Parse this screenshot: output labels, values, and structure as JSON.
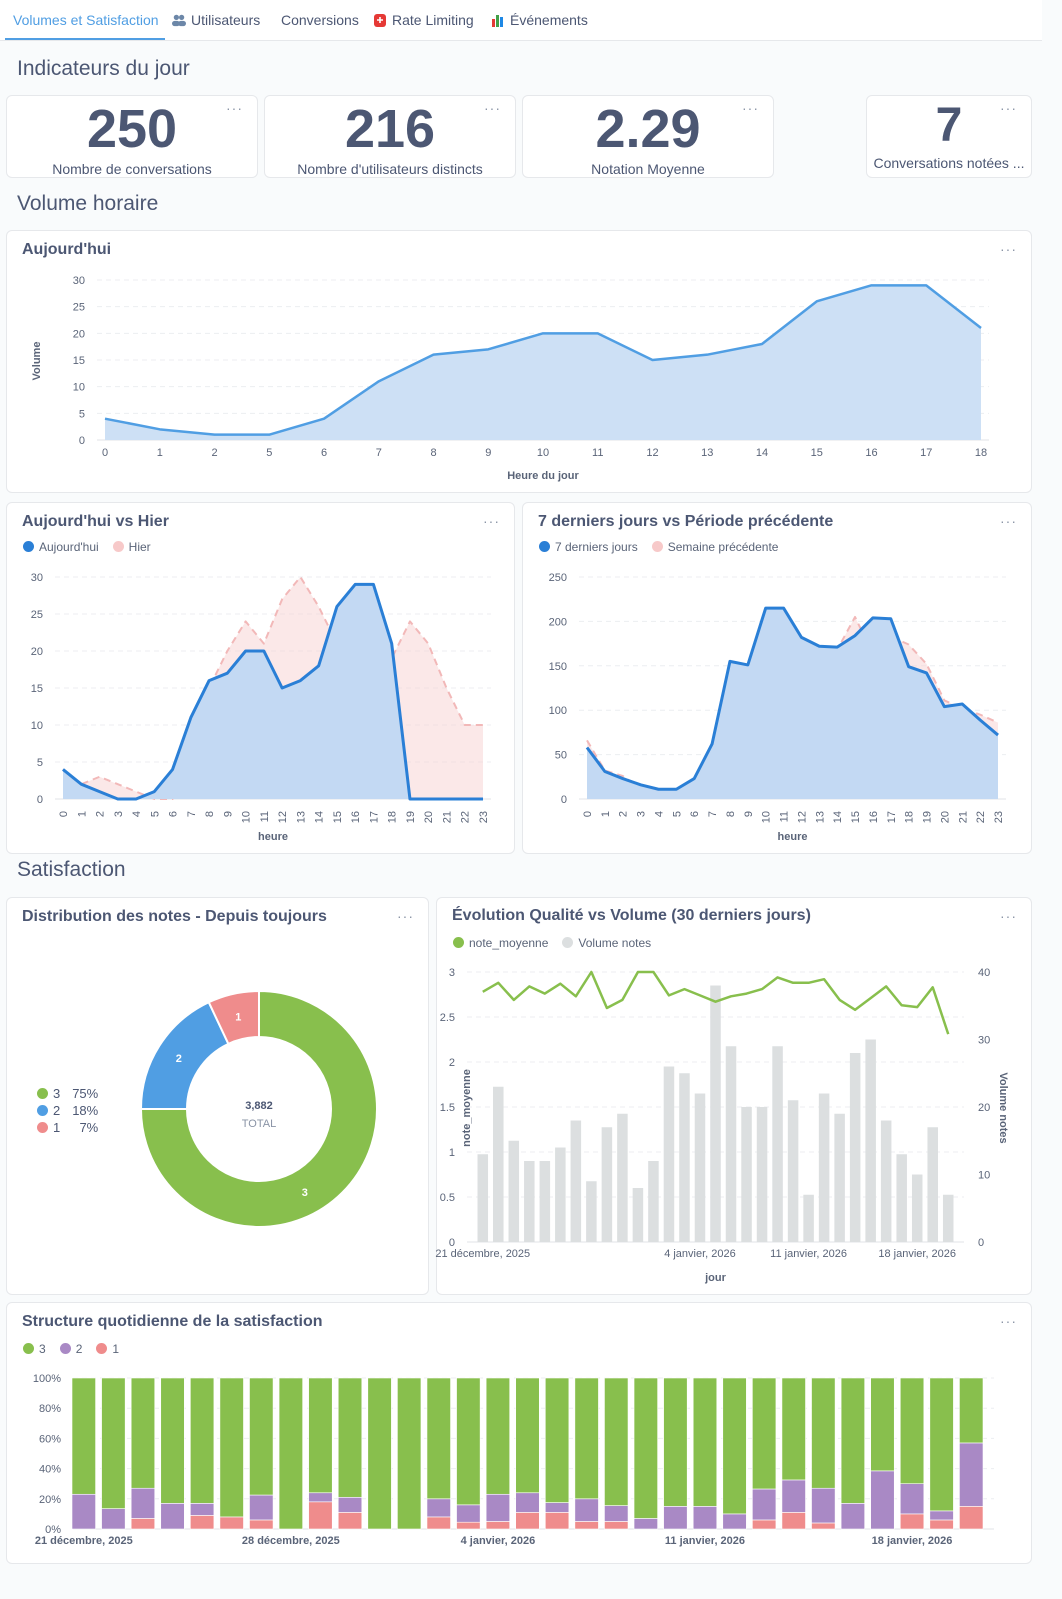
{
  "tabs": [
    {
      "label": "Volumes et Satisfaction",
      "icon": "",
      "active": true
    },
    {
      "label": "Utilisateurs",
      "icon": "users-icon"
    },
    {
      "label": "Conversions",
      "icon": ""
    },
    {
      "label": "Rate Limiting",
      "icon": "siren-icon"
    },
    {
      "label": "Événements",
      "icon": "bar-chart-icon"
    }
  ],
  "sections": {
    "kpi": "Indicateurs du jour",
    "volume": "Volume horaire",
    "satisfaction": "Satisfaction"
  },
  "menu_label": "···",
  "kpis": [
    {
      "value": "250",
      "label": "Nombre de conversations"
    },
    {
      "value": "216",
      "label": "Nombre d'utilisateurs distincts"
    },
    {
      "value": "2.29",
      "label": "Notation Moyenne"
    },
    {
      "value": "7",
      "label": "Conversations notées ..."
    }
  ],
  "colors": {
    "accent": "#509ee3",
    "today": "#2a7fd6",
    "yesterday": "#f2b8b8",
    "green": "#88bf4d",
    "purple": "#a989c5",
    "red": "#ef8c8c",
    "grey": "#dcdfe0"
  },
  "chart_data": [
    {
      "type": "area",
      "title": "Aujourd'hui",
      "xlabel": "Heure du jour",
      "ylabel": "Volume",
      "categories": [
        "0",
        "1",
        "2",
        "5",
        "6",
        "7",
        "8",
        "9",
        "10",
        "11",
        "12",
        "13",
        "14",
        "15",
        "16",
        "17",
        "18"
      ],
      "values": [
        4,
        2,
        1,
        1,
        4,
        11,
        16,
        17,
        20,
        20,
        15,
        16,
        18,
        26,
        29,
        29,
        21
      ],
      "yticks": [
        "0",
        "5",
        "10",
        "15",
        "20",
        "25",
        "30"
      ],
      "ylim": [
        0,
        30
      ],
      "grid": true
    },
    {
      "type": "area",
      "title": "Aujourd'hui vs Hier",
      "xlabel": "heure",
      "ylabel": "",
      "categories": [
        "0",
        "1",
        "2",
        "3",
        "4",
        "5",
        "6",
        "7",
        "8",
        "9",
        "10",
        "11",
        "12",
        "13",
        "14",
        "15",
        "16",
        "17",
        "18",
        "19",
        "20",
        "21",
        "22",
        "23"
      ],
      "series": [
        {
          "name": "Aujourd'hui",
          "values": [
            4,
            2,
            1,
            0,
            0,
            1,
            4,
            11,
            16,
            17,
            20,
            20,
            15,
            16,
            18,
            26,
            29,
            29,
            21,
            0,
            0,
            0,
            0,
            0
          ]
        },
        {
          "name": "Hier",
          "values": [
            4,
            2,
            3,
            2,
            1,
            0,
            0,
            6,
            15,
            20,
            24,
            21,
            27,
            30,
            26,
            21,
            26,
            26,
            19,
            24,
            21,
            15,
            10,
            10
          ]
        }
      ],
      "yticks": [
        "0",
        "5",
        "10",
        "15",
        "20",
        "25",
        "30"
      ],
      "ylim": [
        0,
        30
      ],
      "legend": "top-left",
      "grid": true
    },
    {
      "type": "area",
      "title": "7 derniers jours vs Période précédente",
      "xlabel": "heure",
      "ylabel": "",
      "categories": [
        "0",
        "1",
        "2",
        "3",
        "4",
        "5",
        "6",
        "7",
        "8",
        "9",
        "10",
        "11",
        "12",
        "13",
        "14",
        "15",
        "16",
        "17",
        "18",
        "19",
        "20",
        "21",
        "22",
        "23"
      ],
      "series": [
        {
          "name": "7 derniers jours",
          "values": [
            58,
            31,
            23,
            16,
            11,
            11,
            23,
            62,
            155,
            151,
            215,
            215,
            182,
            172,
            171,
            184,
            204,
            203,
            149,
            142,
            104,
            107,
            89,
            72
          ]
        },
        {
          "name": "Semaine précédente",
          "values": [
            66,
            32,
            26,
            12,
            9,
            7,
            10,
            40,
            100,
            130,
            153,
            172,
            157,
            155,
            168,
            205,
            163,
            183,
            174,
            152,
            111,
            102,
            95,
            86
          ]
        }
      ],
      "yticks": [
        "0",
        "50",
        "100",
        "150",
        "200",
        "250"
      ],
      "ylim": [
        0,
        250
      ],
      "legend": "top-left",
      "grid": true
    },
    {
      "type": "pie",
      "title": "Distribution des notes - Depuis toujours",
      "categories": [
        "3",
        "2",
        "1"
      ],
      "values": [
        75,
        18,
        7
      ],
      "labels": [
        "75%",
        "18%",
        "7%"
      ],
      "total": "3,882",
      "total_label": "TOTAL",
      "legend": "left"
    },
    {
      "type": "bar",
      "title": "Évolution Qualité vs Volume (30 derniers jours)",
      "xlabel": "jour",
      "ylabel": "note_moyenne",
      "y2label": "Volume notes",
      "xticks": [
        {
          "index": 0,
          "label": "21 décembre, 2025"
        },
        {
          "index": 14,
          "label": "4 janvier, 2026"
        },
        {
          "index": 21,
          "label": "11 janvier, 2026"
        },
        {
          "index": 28,
          "label": "18 janvier, 2026"
        }
      ],
      "series": [
        {
          "name": "note_moyenne",
          "type": "line",
          "axis": "left",
          "values": [
            2.78,
            2.88,
            2.69,
            2.84,
            2.76,
            2.87,
            2.73,
            3.0,
            2.6,
            2.69,
            3.0,
            3.0,
            2.74,
            2.81,
            2.74,
            2.67,
            2.73,
            2.76,
            2.81,
            2.94,
            2.88,
            2.88,
            2.92,
            2.69,
            2.58,
            2.71,
            2.84,
            2.63,
            2.61,
            2.83,
            2.31
          ]
        },
        {
          "name": "Volume notes",
          "type": "bar",
          "axis": "right",
          "values": [
            13,
            23,
            15,
            12,
            12,
            14,
            18,
            9,
            17,
            19,
            8,
            12,
            26,
            25,
            22,
            38,
            29,
            20,
            20,
            29,
            21,
            7,
            22,
            19,
            28,
            30,
            18,
            13,
            10,
            17,
            7
          ]
        }
      ],
      "yticks": [
        "0",
        "0.5",
        "1",
        "1.5",
        "2",
        "2.5",
        "3"
      ],
      "ylim": [
        0,
        3
      ],
      "y2ticks": [
        "0",
        "10",
        "20",
        "30",
        "40"
      ],
      "y2lim": [
        0,
        40
      ],
      "legend": "top-left",
      "grid": true
    },
    {
      "type": "bar",
      "stacked": "percent",
      "title": "Structure quotidienne de la satisfaction",
      "xticks": [
        {
          "index": 0,
          "label": "21 décembre, 2025"
        },
        {
          "index": 7,
          "label": "28 décembre, 2025"
        },
        {
          "index": 14,
          "label": "4 janvier, 2026"
        },
        {
          "index": 21,
          "label": "11 janvier, 2026"
        },
        {
          "index": 28,
          "label": "18 janvier, 2026"
        }
      ],
      "series": [
        {
          "name": "3",
          "values": [
            77,
            86.5,
            73,
            83,
            83,
            92,
            77.5,
            100,
            76,
            79,
            100,
            100,
            80,
            84,
            77,
            76,
            82.5,
            80,
            84.5,
            93,
            85,
            85,
            90,
            73.5,
            67.5,
            73,
            83,
            61.5,
            70,
            88,
            43
          ]
        },
        {
          "name": "2",
          "values": [
            23,
            13.5,
            20,
            17,
            8,
            0,
            16.5,
            0,
            6,
            10,
            0,
            0,
            12,
            11.5,
            18,
            13,
            6.5,
            15,
            10.5,
            7,
            15,
            15,
            10,
            20.5,
            21.5,
            23,
            17,
            38.5,
            20,
            6,
            42
          ]
        },
        {
          "name": "1",
          "values": [
            0,
            0,
            7,
            0,
            9,
            8,
            6,
            0,
            18,
            11,
            0,
            0,
            8,
            4.5,
            5,
            11,
            11,
            5,
            5,
            0,
            0,
            0,
            0,
            6,
            11,
            4,
            0,
            0,
            10,
            6,
            15
          ]
        }
      ],
      "yticks": [
        "0%",
        "20%",
        "40%",
        "60%",
        "80%",
        "100%"
      ],
      "ylim": [
        0,
        100
      ],
      "legend": "top-left",
      "grid": true
    }
  ]
}
